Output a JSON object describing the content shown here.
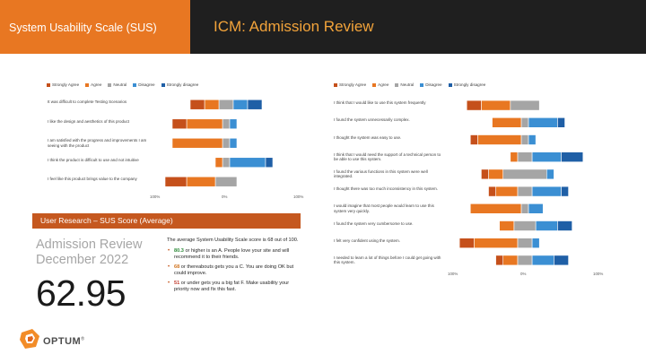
{
  "header": {
    "left_title": "System Usability Scale (SUS)",
    "right_title": "ICM: Admission Review"
  },
  "colors": {
    "header_orange": "#e87722",
    "header_dark": "#1f1f1f",
    "title_orange": "#f2a33a",
    "strongly_agree": "#c5501b",
    "agree": "#e87722",
    "neutral": "#a5a5a5",
    "disagree": "#3b8fd3",
    "strongly_disagree": "#1f5fa6"
  },
  "legend": [
    "Strongly Agree",
    "Agree",
    "Neutral",
    "Disagree",
    "Strongly disagree"
  ],
  "chart_data": [
    {
      "type": "bar",
      "orientation": "diverging-stacked",
      "x_ticks": [
        "100%",
        "0%",
        "100%"
      ],
      "xlim": [
        -100,
        100
      ],
      "series_names": [
        "Strongly Agree",
        "Agree",
        "Neutral",
        "Disagree",
        "Strongly disagree"
      ],
      "categories": [
        "It was difficult to complete Testing Scenarios",
        "I like the design and aesthetics of this product",
        "I am satisfied with the progress and improvements I am seeing with the product",
        "I think the product is difficult to use and not intuitive",
        "I feel like this product brings value to the company"
      ],
      "values": [
        [
          20,
          20,
          20,
          20,
          20
        ],
        [
          20,
          50,
          10,
          10,
          0
        ],
        [
          0,
          70,
          10,
          10,
          0
        ],
        [
          0,
          10,
          10,
          50,
          10
        ],
        [
          30,
          40,
          30,
          0,
          0
        ]
      ]
    },
    {
      "type": "bar",
      "orientation": "diverging-stacked",
      "x_ticks": [
        "100%",
        "0%",
        "100%"
      ],
      "xlim": [
        -100,
        100
      ],
      "series_names": [
        "Strongly Agree",
        "Agree",
        "Neutral",
        "Disagree",
        "Strongly disagree"
      ],
      "categories": [
        "I think that I would like to use this system frequently",
        "I found the system unnecessarily complex.",
        "I thought the system was easy to use.",
        "I think that I would need the support of a technical person to be able to use this system.",
        "I found the various functions in this system were well integrated.",
        "I thought there was too much inconsistency in this system.",
        "I would imagine that most people would learn to use this system very quickly.",
        "I found the system very cumbersome to use.",
        "I felt very confident using the system.",
        "I needed to learn a lot of things before I could get going with this system."
      ],
      "values": [
        [
          20,
          40,
          40,
          0,
          0
        ],
        [
          0,
          40,
          10,
          40,
          10
        ],
        [
          10,
          60,
          10,
          10,
          0
        ],
        [
          0,
          10,
          20,
          40,
          30
        ],
        [
          10,
          20,
          60,
          10,
          0
        ],
        [
          10,
          30,
          20,
          40,
          10
        ],
        [
          0,
          70,
          10,
          20,
          0
        ],
        [
          0,
          20,
          30,
          30,
          20
        ],
        [
          20,
          60,
          20,
          10,
          0
        ],
        [
          10,
          20,
          20,
          30,
          20
        ]
      ]
    }
  ],
  "sus": {
    "bar_title": "User Research – SUS Score (Average)",
    "title_line1": "Admission Review",
    "title_line2": "December 2022",
    "score": "62.95",
    "intro": "The average System Usability Scale score is 68 out of 100.",
    "bullets": [
      {
        "num": "80.3",
        "text": " or higher is an A. People love your site and will recommend it to their friends.",
        "cls": "g"
      },
      {
        "num": "68",
        "text": " or thereabouts gets you a C. You are doing OK but could improve.",
        "cls": "o"
      },
      {
        "num": "51",
        "text": " or under gets you a big fat F. Make usability your priority now and fix this fast.",
        "cls": "r"
      }
    ]
  },
  "brand": {
    "name": "OPTUM",
    "mark": "®"
  }
}
